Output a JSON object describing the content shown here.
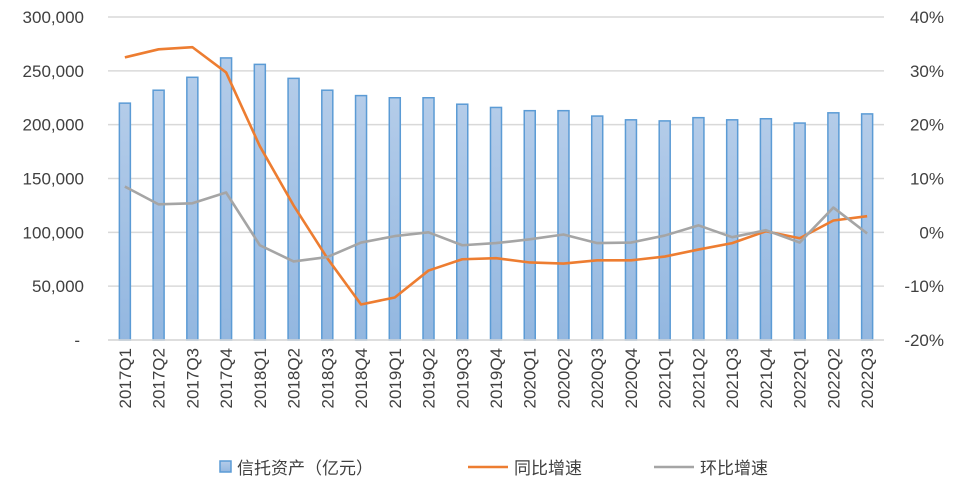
{
  "chart_data": {
    "type": "bar+line",
    "categories": [
      "2017Q1",
      "2017Q2",
      "2017Q3",
      "2017Q4",
      "2018Q1",
      "2018Q2",
      "2018Q3",
      "2018Q4",
      "2019Q1",
      "2019Q2",
      "2019Q3",
      "2019Q4",
      "2020Q1",
      "2020Q2",
      "2020Q3",
      "2020Q4",
      "2021Q1",
      "2021Q2",
      "2021Q3",
      "2021Q4",
      "2022Q1",
      "2022Q2",
      "2022Q3"
    ],
    "left_axis": {
      "range": [
        0,
        300000
      ],
      "ticks": [
        "-",
        "50,000",
        "100,000",
        "150,000",
        "200,000",
        "250,000",
        "300,000"
      ]
    },
    "right_axis": {
      "range": [
        -20,
        40
      ],
      "unit": "%",
      "ticks": [
        "-20%",
        "-10%",
        "0%",
        "10%",
        "20%",
        "30%",
        "40%"
      ]
    },
    "grid": true,
    "legend_position": "bottom",
    "series": [
      {
        "name": "信托资产（亿元）",
        "type": "bar",
        "axis": "left",
        "color": "#5b9bd5",
        "values": [
          220000,
          232000,
          244000,
          262000,
          256000,
          243000,
          232000,
          227000,
          225000,
          225000,
          219000,
          216000,
          213000,
          213000,
          208000,
          204500,
          203500,
          206500,
          204500,
          205500,
          201500,
          211000,
          210000
        ]
      },
      {
        "name": "同比增速",
        "type": "line",
        "axis": "right",
        "color": "#ed7d31",
        "values": [
          32.5,
          34.0,
          34.4,
          29.7,
          16.0,
          5.0,
          -4.8,
          -13.4,
          -12.1,
          -7.1,
          -5.0,
          -4.8,
          -5.6,
          -5.8,
          -5.2,
          -5.2,
          -4.5,
          -3.2,
          -2.0,
          0.2,
          -1.1,
          2.2,
          3.0
        ]
      },
      {
        "name": "环比增速",
        "type": "line",
        "axis": "right",
        "color": "#a5a5a5",
        "values": [
          8.5,
          5.2,
          5.4,
          7.4,
          -2.4,
          -5.4,
          -4.6,
          -1.9,
          -0.7,
          0.0,
          -2.4,
          -2.0,
          -1.3,
          -0.4,
          -2.0,
          -1.9,
          -0.6,
          1.3,
          -0.9,
          0.4,
          -1.9,
          4.6,
          -0.2
        ]
      }
    ]
  }
}
